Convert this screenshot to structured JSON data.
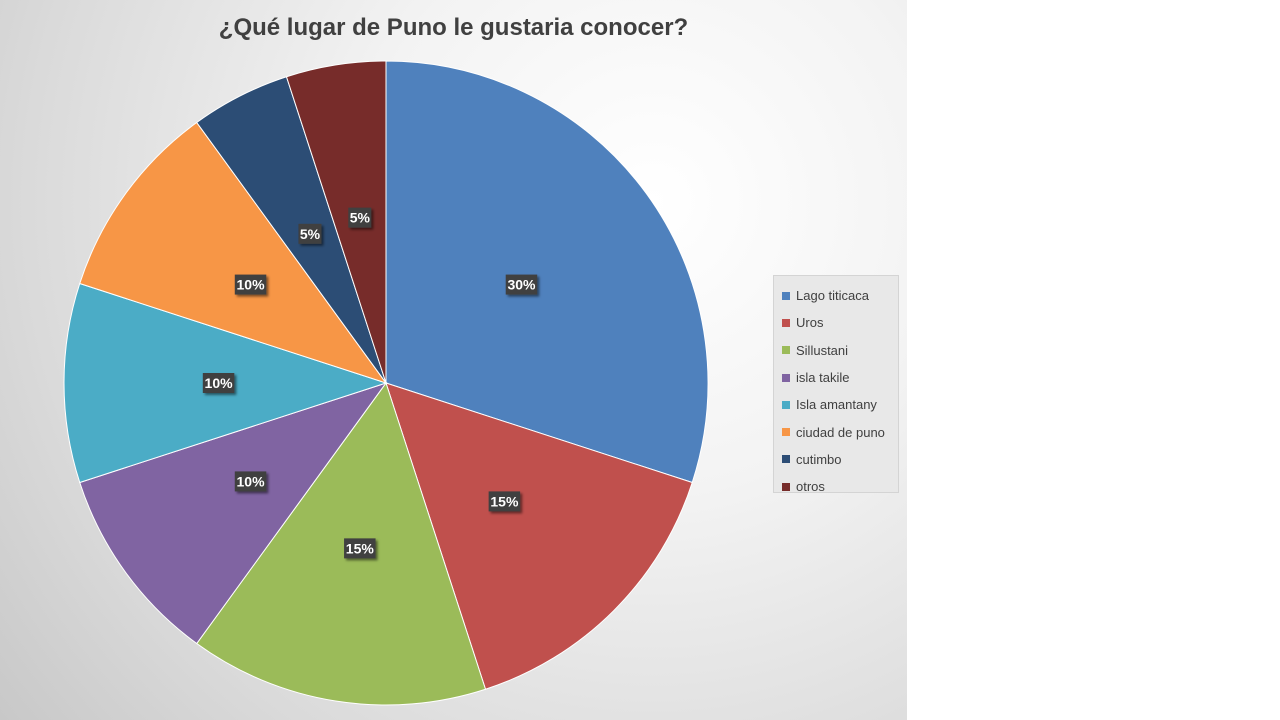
{
  "chart_data": {
    "type": "pie",
    "title": "¿Qué lugar de Puno le gustaria conocer?",
    "categories": [
      "Lago titicaca",
      "Uros",
      "Sillustani",
      "isla takile",
      "Isla amantany",
      "ciudad de puno",
      "cutimbo",
      "otros"
    ],
    "values": [
      30,
      15,
      15,
      10,
      10,
      10,
      5,
      5
    ],
    "data_labels": [
      "30%",
      "15%",
      "15%",
      "10%",
      "10%",
      "10%",
      "5%",
      "5%"
    ],
    "colors": [
      "#4f81bd",
      "#c0504d",
      "#9bbb59",
      "#8064a2",
      "#4bacc6",
      "#f79646",
      "#2c4d75",
      "#772c2a"
    ],
    "legend_position": "right"
  }
}
